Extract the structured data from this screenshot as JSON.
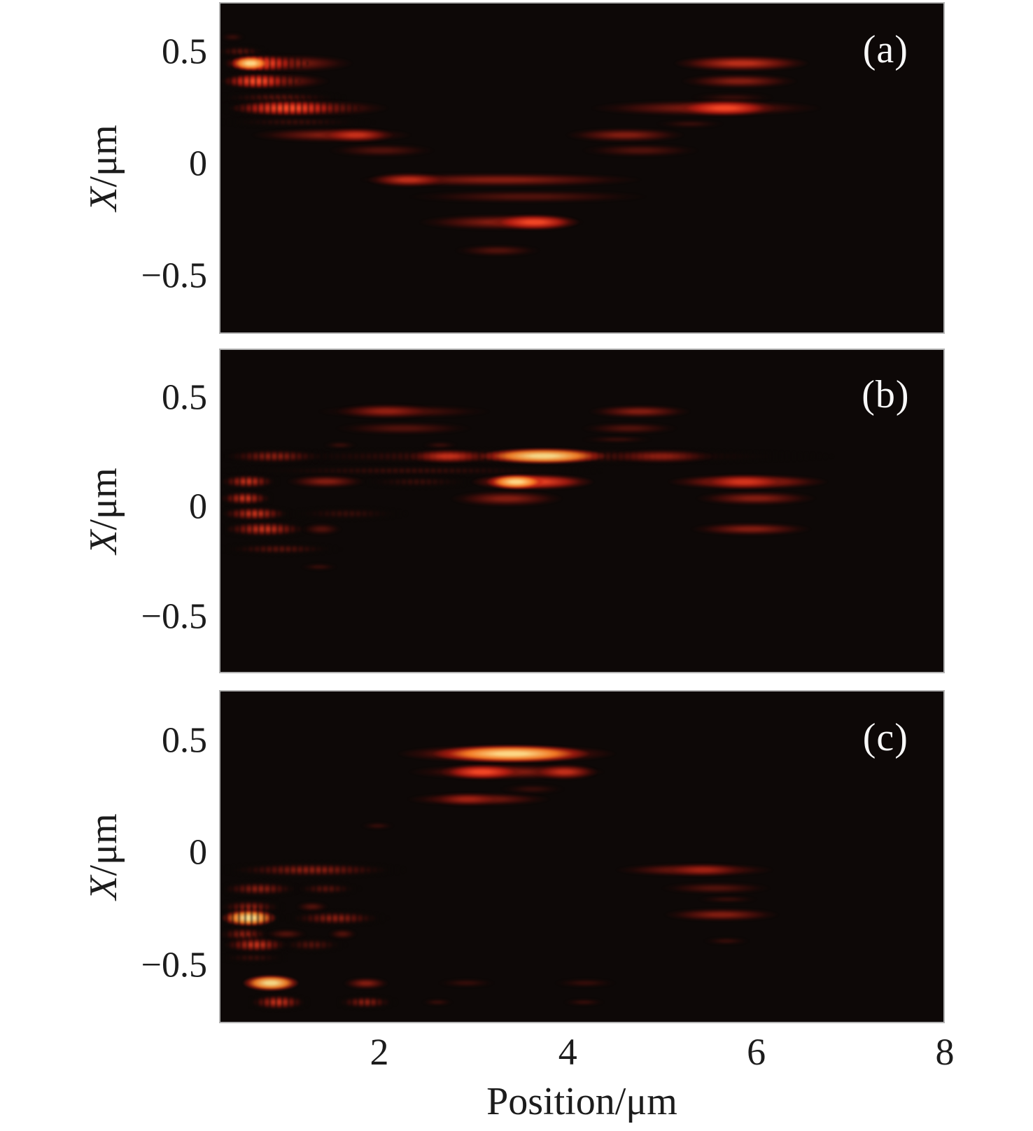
{
  "figure": {
    "background": "#ffffff",
    "panel_background": "#0d0807",
    "panel_border_color": "#b2b2b2",
    "text_color": "#1c1c1c",
    "panel_label_color": "#f8f8f8",
    "colormap": "black-red-orange-yellow hot"
  },
  "chart_data": {
    "type": "heatmap",
    "title": "",
    "xlabel": "Position/μm",
    "ylabel": "X/μm",
    "ylabel_italic": "X",
    "ylabel_rest": "/μm",
    "x_range": [
      0.3,
      8
    ],
    "y_range": [
      -0.75,
      0.72
    ],
    "x_ticks": [
      {
        "label": "2",
        "value": 2
      },
      {
        "label": "4",
        "value": 4
      },
      {
        "label": "6",
        "value": 6
      },
      {
        "label": "8",
        "value": 8
      }
    ],
    "y_ticks": [
      {
        "label": "0.5",
        "value": 0.5
      },
      {
        "label": "0",
        "value": 0
      },
      {
        "label": "−0.5",
        "value": -0.5
      }
    ],
    "legend": "none",
    "grid": false,
    "panels": [
      {
        "label": "(a)",
        "streaks": [
          {
            "x0": 0.36,
            "x1": 0.5,
            "y": 0.57,
            "i": 0.2,
            "h": 7
          },
          {
            "x0": 0.31,
            "x1": 0.72,
            "y": 0.505,
            "i": 0.3,
            "h": 8,
            "dotted": true
          },
          {
            "x0": 0.3,
            "x1": 1.78,
            "y": 0.452,
            "i": 0.55,
            "h": 13
          },
          {
            "x0": 0.32,
            "x1": 1.15,
            "y": 0.452,
            "i": 0.92,
            "h": 13,
            "dotted": true
          },
          {
            "x0": 0.44,
            "x1": 0.8,
            "y": 0.452,
            "i": 1.0,
            "h": 11,
            "hot": true
          },
          {
            "x0": 0.3,
            "x1": 1.5,
            "y": 0.373,
            "i": 0.5,
            "h": 12
          },
          {
            "x0": 0.31,
            "x1": 1.06,
            "y": 0.373,
            "i": 0.85,
            "h": 12,
            "dotted": true
          },
          {
            "x0": 0.31,
            "x1": 1.55,
            "y": 0.3,
            "i": 0.3,
            "h": 8,
            "dotted": true
          },
          {
            "x0": 0.31,
            "x1": 2.2,
            "y": 0.252,
            "i": 0.5,
            "h": 12
          },
          {
            "x0": 0.33,
            "x1": 1.7,
            "y": 0.252,
            "i": 0.85,
            "h": 12,
            "dotted": true
          },
          {
            "x0": 0.36,
            "x1": 1.85,
            "y": 0.19,
            "i": 0.2,
            "h": 7,
            "dotted": true
          },
          {
            "x0": 0.52,
            "x1": 2.45,
            "y": 0.132,
            "i": 0.55,
            "h": 11
          },
          {
            "x0": 1.35,
            "x1": 2.15,
            "y": 0.132,
            "i": 0.8,
            "h": 11
          },
          {
            "x0": 1.42,
            "x1": 2.62,
            "y": 0.062,
            "i": 0.38,
            "h": 10
          },
          {
            "x0": 1.52,
            "x1": 5.05,
            "y": -0.068,
            "i": 0.55,
            "h": 11
          },
          {
            "x0": 1.85,
            "x1": 2.75,
            "y": -0.068,
            "i": 0.68,
            "h": 11
          },
          {
            "x0": 2.1,
            "x1": 5.05,
            "y": -0.142,
            "i": 0.38,
            "h": 10
          },
          {
            "x0": 2.3,
            "x1": 4.28,
            "y": -0.258,
            "i": 0.55,
            "h": 12
          },
          {
            "x0": 3.15,
            "x1": 4.15,
            "y": -0.258,
            "i": 0.9,
            "h": 12
          },
          {
            "x0": 2.78,
            "x1": 3.72,
            "y": -0.385,
            "i": 0.3,
            "h": 9
          },
          {
            "x0": 5.05,
            "x1": 6.65,
            "y": 0.452,
            "i": 0.72,
            "h": 12
          },
          {
            "x0": 5.15,
            "x1": 6.5,
            "y": 0.373,
            "i": 0.58,
            "h": 11
          },
          {
            "x0": 5.3,
            "x1": 6.2,
            "y": 0.3,
            "i": 0.22,
            "h": 8
          },
          {
            "x0": 4.05,
            "x1": 6.9,
            "y": 0.252,
            "i": 0.62,
            "h": 12
          },
          {
            "x0": 5.1,
            "x1": 6.25,
            "y": 0.252,
            "i": 0.85,
            "h": 12
          },
          {
            "x0": 4.95,
            "x1": 5.65,
            "y": 0.182,
            "i": 0.2,
            "h": 7
          },
          {
            "x0": 3.92,
            "x1": 5.3,
            "y": 0.132,
            "i": 0.58,
            "h": 11
          },
          {
            "x0": 4.1,
            "x1": 5.45,
            "y": 0.062,
            "i": 0.35,
            "h": 10
          }
        ]
      },
      {
        "label": "(b)",
        "streaks": [
          {
            "x0": 1.22,
            "x1": 3.3,
            "y": 0.44,
            "i": 0.35,
            "h": 10
          },
          {
            "x0": 1.5,
            "x1": 2.62,
            "y": 0.44,
            "i": 0.6,
            "h": 11
          },
          {
            "x0": 4.18,
            "x1": 5.35,
            "y": 0.44,
            "i": 0.45,
            "h": 10
          },
          {
            "x0": 1.45,
            "x1": 3.05,
            "y": 0.362,
            "i": 0.4,
            "h": 10
          },
          {
            "x0": 4.12,
            "x1": 5.2,
            "y": 0.362,
            "i": 0.3,
            "h": 9
          },
          {
            "x0": 1.45,
            "x1": 1.7,
            "y": 0.285,
            "i": 0.15,
            "h": 6
          },
          {
            "x0": 2.5,
            "x1": 2.78,
            "y": 0.285,
            "i": 0.15,
            "h": 6
          },
          {
            "x0": 4.15,
            "x1": 4.9,
            "y": 0.31,
            "i": 0.16,
            "h": 6
          },
          {
            "x0": 0.34,
            "x1": 6.75,
            "y": 0.235,
            "i": 0.4,
            "h": 10,
            "dotted": true
          },
          {
            "x0": 0.34,
            "x1": 1.4,
            "y": 0.235,
            "i": 0.55,
            "h": 10,
            "dotted": true
          },
          {
            "x0": 2.3,
            "x1": 3.15,
            "y": 0.235,
            "i": 0.7,
            "h": 11
          },
          {
            "x0": 3.0,
            "x1": 4.48,
            "y": 0.235,
            "i": 1.0,
            "h": 12,
            "hot": true
          },
          {
            "x0": 4.4,
            "x1": 5.6,
            "y": 0.235,
            "i": 0.55,
            "h": 11
          },
          {
            "x0": 0.35,
            "x1": 4.3,
            "y": 0.168,
            "i": 0.2,
            "h": 7,
            "dotted": true
          },
          {
            "x0": 0.34,
            "x1": 0.85,
            "y": 0.118,
            "i": 0.7,
            "h": 10,
            "dotted": true
          },
          {
            "x0": 1.0,
            "x1": 1.85,
            "y": 0.118,
            "i": 0.55,
            "h": 10
          },
          {
            "x0": 1.85,
            "x1": 2.95,
            "y": 0.118,
            "i": 0.25,
            "h": 8,
            "dotted": true
          },
          {
            "x0": 2.9,
            "x1": 4.35,
            "y": 0.118,
            "i": 0.88,
            "h": 12
          },
          {
            "x0": 3.15,
            "x1": 3.75,
            "y": 0.118,
            "i": 1.0,
            "h": 11,
            "hot": true
          },
          {
            "x0": 4.95,
            "x1": 6.88,
            "y": 0.118,
            "i": 0.7,
            "h": 11
          },
          {
            "x0": 5.4,
            "x1": 6.35,
            "y": 0.118,
            "i": 0.82,
            "h": 11
          },
          {
            "x0": 0.33,
            "x1": 0.8,
            "y": 0.042,
            "i": 0.65,
            "h": 10,
            "dotted": true
          },
          {
            "x0": 2.7,
            "x1": 4.0,
            "y": 0.042,
            "i": 0.48,
            "h": 12
          },
          {
            "x0": 5.3,
            "x1": 6.7,
            "y": 0.042,
            "i": 0.55,
            "h": 11
          },
          {
            "x0": 0.33,
            "x1": 1.0,
            "y": -0.028,
            "i": 0.7,
            "h": 10,
            "dotted": true
          },
          {
            "x0": 1.1,
            "x1": 2.2,
            "y": -0.028,
            "i": 0.25,
            "h": 8,
            "dotted": true
          },
          {
            "x0": 0.34,
            "x1": 1.2,
            "y": -0.098,
            "i": 0.75,
            "h": 11,
            "dotted": true
          },
          {
            "x0": 1.2,
            "x1": 1.55,
            "y": -0.098,
            "i": 0.4,
            "h": 9
          },
          {
            "x0": 5.25,
            "x1": 6.65,
            "y": -0.098,
            "i": 0.5,
            "h": 10
          },
          {
            "x0": 0.35,
            "x1": 1.5,
            "y": -0.19,
            "i": 0.28,
            "h": 8,
            "dotted": true
          },
          {
            "x0": 1.2,
            "x1": 1.5,
            "y": -0.27,
            "i": 0.16,
            "h": 6
          }
        ]
      },
      {
        "label": "(c)",
        "streaks": [
          {
            "x0": 2.0,
            "x1": 4.7,
            "y": 0.443,
            "i": 0.75,
            "h": 13
          },
          {
            "x0": 2.45,
            "x1": 4.35,
            "y": 0.443,
            "i": 1.0,
            "h": 13,
            "hot": true
          },
          {
            "x0": 2.15,
            "x1": 4.55,
            "y": 0.362,
            "i": 0.6,
            "h": 12
          },
          {
            "x0": 2.62,
            "x1": 3.55,
            "y": 0.362,
            "i": 0.9,
            "h": 12
          },
          {
            "x0": 3.62,
            "x1": 4.32,
            "y": 0.362,
            "i": 0.78,
            "h": 12
          },
          {
            "x0": 3.3,
            "x1": 3.95,
            "y": 0.285,
            "i": 0.25,
            "h": 8
          },
          {
            "x0": 2.2,
            "x1": 3.9,
            "y": 0.24,
            "i": 0.5,
            "h": 10
          },
          {
            "x0": 2.55,
            "x1": 3.3,
            "y": 0.24,
            "i": 0.62,
            "h": 10
          },
          {
            "x0": 1.85,
            "x1": 2.1,
            "y": 0.122,
            "i": 0.15,
            "h": 6
          },
          {
            "x0": 0.34,
            "x1": 2.2,
            "y": -0.075,
            "i": 0.45,
            "h": 10,
            "dotted": true
          },
          {
            "x0": 4.4,
            "x1": 6.3,
            "y": -0.075,
            "i": 0.45,
            "h": 10
          },
          {
            "x0": 5.0,
            "x1": 5.9,
            "y": -0.075,
            "i": 0.58,
            "h": 10
          },
          {
            "x0": 0.33,
            "x1": 1.1,
            "y": -0.158,
            "i": 0.6,
            "h": 10,
            "dotted": true
          },
          {
            "x0": 1.15,
            "x1": 1.7,
            "y": -0.158,
            "i": 0.3,
            "h": 8,
            "dotted": true
          },
          {
            "x0": 4.95,
            "x1": 6.2,
            "y": -0.155,
            "i": 0.35,
            "h": 9
          },
          {
            "x0": 5.4,
            "x1": 6.0,
            "y": -0.205,
            "i": 0.18,
            "h": 6
          },
          {
            "x0": 0.33,
            "x1": 0.9,
            "y": -0.238,
            "i": 0.55,
            "h": 10,
            "dotted": true
          },
          {
            "x0": 1.15,
            "x1": 1.4,
            "y": -0.238,
            "i": 0.3,
            "h": 8
          },
          {
            "x0": 0.33,
            "x1": 0.88,
            "y": -0.288,
            "i": 0.95,
            "h": 13,
            "hot": true,
            "dotted": true
          },
          {
            "x0": 1.05,
            "x1": 2.0,
            "y": -0.288,
            "i": 0.6,
            "h": 10,
            "dotted": true
          },
          {
            "x0": 4.97,
            "x1": 6.3,
            "y": -0.275,
            "i": 0.45,
            "h": 10
          },
          {
            "x0": 0.33,
            "x1": 0.78,
            "y": -0.36,
            "i": 0.6,
            "h": 10,
            "dotted": true
          },
          {
            "x0": 0.82,
            "x1": 1.18,
            "y": -0.36,
            "i": 0.35,
            "h": 8
          },
          {
            "x0": 1.5,
            "x1": 1.7,
            "y": -0.36,
            "i": 0.3,
            "h": 8
          },
          {
            "x0": 0.35,
            "x1": 1.0,
            "y": -0.408,
            "i": 0.7,
            "h": 11,
            "dotted": true
          },
          {
            "x0": 1.0,
            "x1": 1.55,
            "y": -0.408,
            "i": 0.4,
            "h": 9,
            "dotted": true
          },
          {
            "x0": 5.48,
            "x1": 5.9,
            "y": -0.39,
            "i": 0.18,
            "h": 6
          },
          {
            "x0": 0.35,
            "x1": 0.95,
            "y": -0.465,
            "i": 0.2,
            "h": 7,
            "dotted": true
          },
          {
            "x0": 0.55,
            "x1": 1.12,
            "y": -0.578,
            "i": 0.85,
            "h": 12,
            "hot": true
          },
          {
            "x0": 1.64,
            "x1": 2.06,
            "y": -0.578,
            "i": 0.5,
            "h": 9
          },
          {
            "x0": 2.64,
            "x1": 3.2,
            "y": -0.578,
            "i": 0.22,
            "h": 7
          },
          {
            "x0": 3.88,
            "x1": 4.5,
            "y": -0.578,
            "i": 0.25,
            "h": 7
          },
          {
            "x0": 0.66,
            "x1": 1.17,
            "y": -0.662,
            "i": 0.8,
            "h": 11,
            "dotted": true
          },
          {
            "x0": 1.6,
            "x1": 2.1,
            "y": -0.662,
            "i": 0.5,
            "h": 9,
            "dotted": true
          },
          {
            "x0": 2.5,
            "x1": 2.72,
            "y": -0.662,
            "i": 0.18,
            "h": 6
          },
          {
            "x0": 4.0,
            "x1": 4.35,
            "y": -0.662,
            "i": 0.18,
            "h": 6
          }
        ]
      }
    ]
  }
}
